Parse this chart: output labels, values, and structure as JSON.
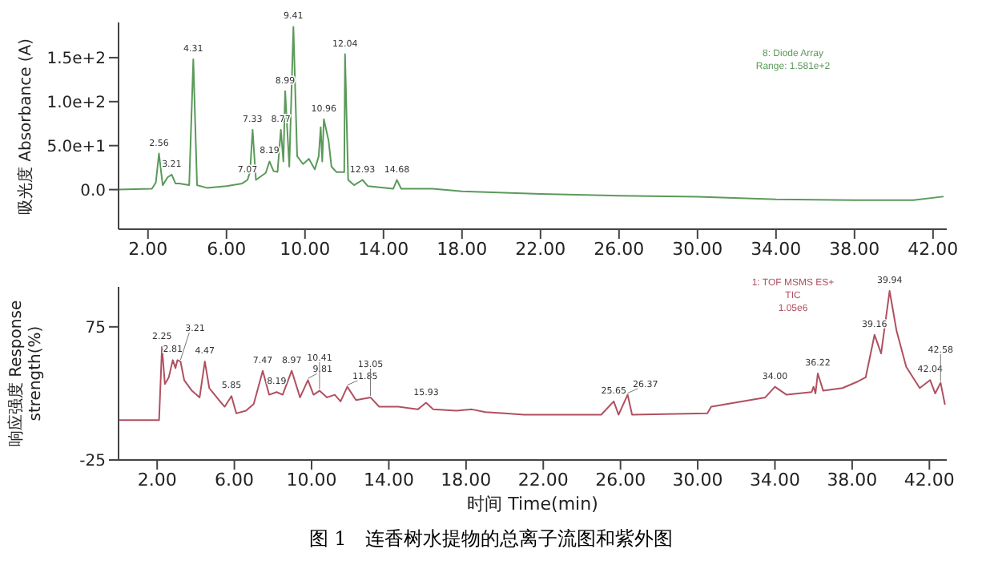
{
  "chart_data": [
    {
      "type": "line",
      "ylabel": "吸光度 Absorbance (A)",
      "xlim": [
        0.5,
        42.7
      ],
      "ylim": [
        -45,
        190
      ],
      "xticks": [
        {
          "value": 2,
          "label": "2.00"
        },
        {
          "value": 6,
          "label": "6.00"
        },
        {
          "value": 10,
          "label": "10.00"
        },
        {
          "value": 14,
          "label": "14.00"
        },
        {
          "value": 18,
          "label": "18.00"
        },
        {
          "value": 22,
          "label": "22.00"
        },
        {
          "value": 26,
          "label": "26.00"
        },
        {
          "value": 30,
          "label": "30.00"
        },
        {
          "value": 34,
          "label": "34.00"
        },
        {
          "value": 38,
          "label": "38.00"
        },
        {
          "value": 42,
          "label": "42.00"
        }
      ],
      "yticks": [
        {
          "value": 0,
          "label": "0.0"
        },
        {
          "value": 50,
          "label": "5.0e+1"
        },
        {
          "value": 100,
          "label": "1.0e+2"
        },
        {
          "value": 150,
          "label": "1.5e+2"
        }
      ],
      "grid": false,
      "legend": false,
      "marker": "none",
      "series": [
        {
          "color": "#5a9a5a",
          "x": [
            0.5,
            2.2,
            2.4,
            2.56,
            2.75,
            3.0,
            3.21,
            3.4,
            3.6,
            4.1,
            4.31,
            4.5,
            5,
            6,
            6.8,
            7.07,
            7.2,
            7.33,
            7.5,
            8,
            8.19,
            8.4,
            8.6,
            8.77,
            8.9,
            8.99,
            9.2,
            9.41,
            9.6,
            9.9,
            10.2,
            10.5,
            10.7,
            10.8,
            10.88,
            10.96,
            11.2,
            11.35,
            11.6,
            11.75,
            12.0,
            12.04,
            12.2,
            12.5,
            12.93,
            13.2,
            14.5,
            14.68,
            14.9,
            16.5,
            18,
            22,
            26,
            30,
            34,
            38,
            41,
            42.5
          ],
          "values": [
            0,
            1,
            8,
            41,
            5,
            14,
            17,
            7,
            7,
            5,
            148,
            5,
            2,
            4,
            7,
            11,
            20,
            68,
            11,
            19,
            32,
            21,
            20,
            68,
            32,
            112,
            26,
            185,
            38,
            29,
            35,
            23,
            38,
            71,
            32,
            80,
            56,
            26,
            20,
            20,
            20,
            154,
            11,
            5,
            11,
            4,
            1,
            11,
            1,
            1,
            -2,
            -5,
            -7,
            -8,
            -11,
            -12,
            -12,
            -8
          ]
        }
      ],
      "annotations": [
        {
          "text": "2.56",
          "x": 2.56,
          "y": 41
        },
        {
          "text": "3.21",
          "x": 3.21,
          "y": 17
        },
        {
          "text": "4.31",
          "x": 4.31,
          "y": 148
        },
        {
          "text": "7.07",
          "x": 7.07,
          "y": 11
        },
        {
          "text": "7.33",
          "x": 7.33,
          "y": 68
        },
        {
          "text": "8.19",
          "x": 8.19,
          "y": 32
        },
        {
          "text": "8.77",
          "x": 8.77,
          "y": 68
        },
        {
          "text": "8.99",
          "x": 8.99,
          "y": 112
        },
        {
          "text": "9.41",
          "x": 9.41,
          "y": 185
        },
        {
          "text": "10.96",
          "x": 10.96,
          "y": 80
        },
        {
          "text": "12.04",
          "x": 12.04,
          "y": 154
        },
        {
          "text": "12.93",
          "x": 12.93,
          "y": 11
        },
        {
          "text": "14.68",
          "x": 14.68,
          "y": 11
        },
        "8: Diode Array",
        "Range: 1.581e+2"
      ]
    },
    {
      "type": "line",
      "ylabel": "响应强度 Response strength(%)",
      "xlabel": "时间 Time(min)",
      "xlim": [
        0,
        42.9
      ],
      "ylim": [
        -25,
        105
      ],
      "xticks": [
        {
          "value": 2,
          "label": "2.00"
        },
        {
          "value": 6,
          "label": "6.00"
        },
        {
          "value": 10,
          "label": "10.00"
        },
        {
          "value": 14,
          "label": "14.00"
        },
        {
          "value": 18,
          "label": "18.00"
        },
        {
          "value": 22,
          "label": "22.00"
        },
        {
          "value": 26,
          "label": "26.00"
        },
        {
          "value": 30,
          "label": "30.00"
        },
        {
          "value": 34,
          "label": "34.00"
        },
        {
          "value": 38,
          "label": "38.00"
        },
        {
          "value": 42,
          "label": "42.00"
        }
      ],
      "yticks": [
        -25,
        75
      ],
      "grid": false,
      "legend": false,
      "marker": "none",
      "series": [
        {
          "color": "#b05060",
          "x": [
            0,
            2.0,
            2.1,
            2.25,
            2.4,
            2.6,
            2.81,
            2.95,
            3.05,
            3.21,
            3.4,
            3.8,
            4.2,
            4.47,
            4.7,
            5.2,
            5.5,
            5.85,
            6.1,
            6.6,
            7.0,
            7.47,
            7.8,
            8.19,
            8.5,
            8.97,
            9.4,
            9.81,
            10.1,
            10.41,
            10.8,
            11.2,
            11.5,
            11.85,
            12.3,
            13.05,
            13.5,
            14.5,
            15.5,
            15.93,
            16.3,
            17.5,
            18.3,
            19,
            20,
            21,
            25,
            25.65,
            25.9,
            26.37,
            26.6,
            30.5,
            30.7,
            33.5,
            34.0,
            34.6,
            35.9,
            36.0,
            36.1,
            36.22,
            36.5,
            37.5,
            38.3,
            38.7,
            39.16,
            39.5,
            39.94,
            40.3,
            40.8,
            41.5,
            42.04,
            42.3,
            42.58,
            42.8
          ],
          "values": [
            5,
            5,
            5,
            60,
            32,
            37,
            50,
            44,
            50,
            49,
            35,
            27,
            22,
            49,
            29,
            20,
            15,
            23,
            10,
            12,
            17,
            42,
            24,
            26,
            24,
            42,
            22,
            35,
            24,
            27,
            22,
            24,
            19,
            30,
            20,
            22,
            15,
            15,
            13,
            18,
            13,
            12,
            13,
            11,
            10,
            9,
            9,
            19,
            9,
            24,
            9,
            10,
            15,
            22,
            30,
            24,
            26,
            30,
            25,
            40,
            27,
            29,
            34,
            37,
            69,
            55,
            102,
            72,
            45,
            29,
            35,
            25,
            33,
            17
          ]
        }
      ],
      "annotations": [
        {
          "text": "2.25",
          "x": 2.25,
          "y": 60
        },
        {
          "text": "2.81",
          "x": 2.81,
          "y": 50
        },
        {
          "text": "3.21",
          "x": 3.21,
          "y": 49
        },
        {
          "text": "4.47",
          "x": 4.47,
          "y": 49
        },
        {
          "text": "5.85",
          "x": 5.85,
          "y": 23
        },
        {
          "text": "7.47",
          "x": 7.47,
          "y": 42
        },
        {
          "text": "8.19",
          "x": 8.19,
          "y": 26
        },
        {
          "text": "8.97",
          "x": 8.97,
          "y": 42
        },
        {
          "text": "9.81",
          "x": 9.81,
          "y": 35
        },
        {
          "text": "10.41",
          "x": 10.41,
          "y": 27
        },
        {
          "text": "11.85",
          "x": 11.85,
          "y": 30
        },
        {
          "text": "13.05",
          "x": 13.05,
          "y": 22
        },
        {
          "text": "15.93",
          "x": 15.93,
          "y": 18
        },
        {
          "text": "25.65",
          "x": 25.65,
          "y": 19
        },
        {
          "text": "26.37",
          "x": 26.37,
          "y": 24
        },
        {
          "text": "34.00",
          "x": 34.0,
          "y": 30
        },
        {
          "text": "36.22",
          "x": 36.22,
          "y": 40
        },
        {
          "text": "39.16",
          "x": 39.16,
          "y": 69
        },
        {
          "text": "39.94",
          "x": 39.94,
          "y": 102
        },
        {
          "text": "42.04",
          "x": 42.04,
          "y": 35
        },
        {
          "text": "42.58",
          "x": 42.58,
          "y": 33
        },
        "1: TOF MSMS ES+",
        "TIC",
        "1.05e6",
        "图 1　连香树水提物的总离子流图和紫外图"
      ]
    }
  ]
}
